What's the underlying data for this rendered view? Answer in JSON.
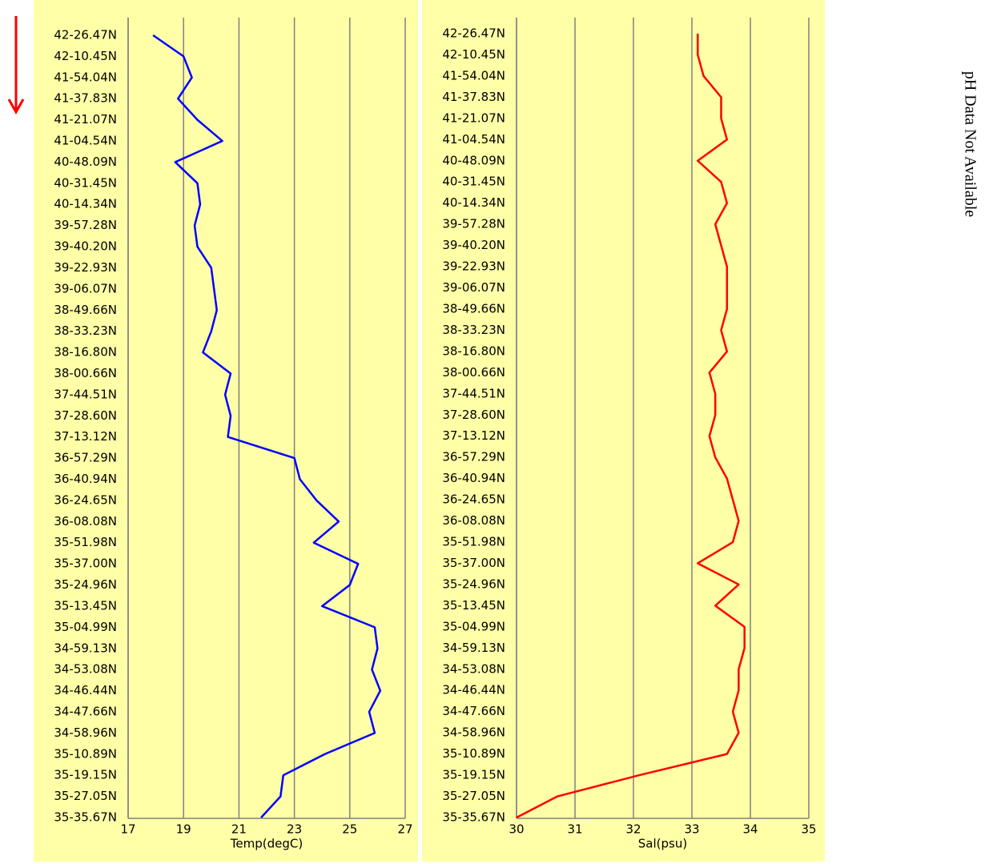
{
  "side_text": "pH Data Not Available",
  "chart_data": [
    {
      "type": "line",
      "x_label": "Temp(degC)",
      "categories": [
        "42-26.47N",
        "42-10.45N",
        "41-54.04N",
        "41-37.83N",
        "41-21.07N",
        "41-04.54N",
        "40-48.09N",
        "40-31.45N",
        "40-14.34N",
        "39-57.28N",
        "39-40.20N",
        "39-22.93N",
        "39-06.07N",
        "38-49.66N",
        "38-33.23N",
        "38-16.80N",
        "38-00.66N",
        "37-44.51N",
        "37-28.60N",
        "37-13.12N",
        "36-57.29N",
        "36-40.94N",
        "36-24.65N",
        "36-08.08N",
        "35-51.98N",
        "35-37.00N",
        "35-24.96N",
        "35-13.45N",
        "35-04.99N",
        "34-59.13N",
        "34-53.08N",
        "34-46.44N",
        "34-47.66N",
        "34-58.96N",
        "35-10.89N",
        "35-19.15N",
        "35-27.05N",
        "35-35.67N"
      ],
      "series": [
        {
          "color": "#0000ff",
          "values": [
            17.9,
            19.0,
            19.3,
            18.8,
            19.5,
            20.4,
            18.7,
            19.5,
            19.6,
            19.4,
            19.5,
            20.0,
            20.1,
            20.2,
            20.0,
            19.7,
            20.7,
            20.5,
            20.7,
            20.6,
            23.0,
            23.2,
            23.8,
            24.6,
            23.7,
            25.3,
            25.0,
            24.0,
            25.9,
            26.0,
            25.8,
            26.1,
            25.7,
            25.9,
            24.1,
            22.6,
            22.5,
            21.8
          ]
        }
      ],
      "xlim": [
        17,
        27
      ],
      "xticks": [
        17,
        19,
        21,
        23,
        25,
        27
      ],
      "grid": true
    },
    {
      "type": "line",
      "x_label": "Sal(psu)",
      "categories": [
        "42-26.47N",
        "42-10.45N",
        "41-54.04N",
        "41-37.83N",
        "41-21.07N",
        "41-04.54N",
        "40-48.09N",
        "40-31.45N",
        "40-14.34N",
        "39-57.28N",
        "39-40.20N",
        "39-22.93N",
        "39-06.07N",
        "38-49.66N",
        "38-33.23N",
        "38-16.80N",
        "38-00.66N",
        "37-44.51N",
        "37-28.60N",
        "37-13.12N",
        "36-57.29N",
        "36-40.94N",
        "36-24.65N",
        "36-08.08N",
        "35-51.98N",
        "35-37.00N",
        "35-24.96N",
        "35-13.45N",
        "35-04.99N",
        "34-59.13N",
        "34-53.08N",
        "34-46.44N",
        "34-47.66N",
        "34-58.96N",
        "35-10.89N",
        "35-19.15N",
        "35-27.05N",
        "35-35.67N"
      ],
      "series": [
        {
          "color": "#ff0000",
          "values": [
            33.1,
            33.1,
            33.2,
            33.5,
            33.5,
            33.6,
            33.1,
            33.5,
            33.6,
            33.4,
            33.5,
            33.6,
            33.6,
            33.6,
            33.5,
            33.6,
            33.3,
            33.4,
            33.4,
            33.3,
            33.4,
            33.6,
            33.7,
            33.8,
            33.7,
            33.1,
            33.8,
            33.4,
            33.9,
            33.9,
            33.8,
            33.8,
            33.7,
            33.8,
            33.6,
            32.1,
            30.7,
            30.0
          ]
        }
      ],
      "xlim": [
        30,
        35
      ],
      "xticks": [
        30,
        31,
        32,
        33,
        34,
        35
      ],
      "grid": true
    }
  ]
}
